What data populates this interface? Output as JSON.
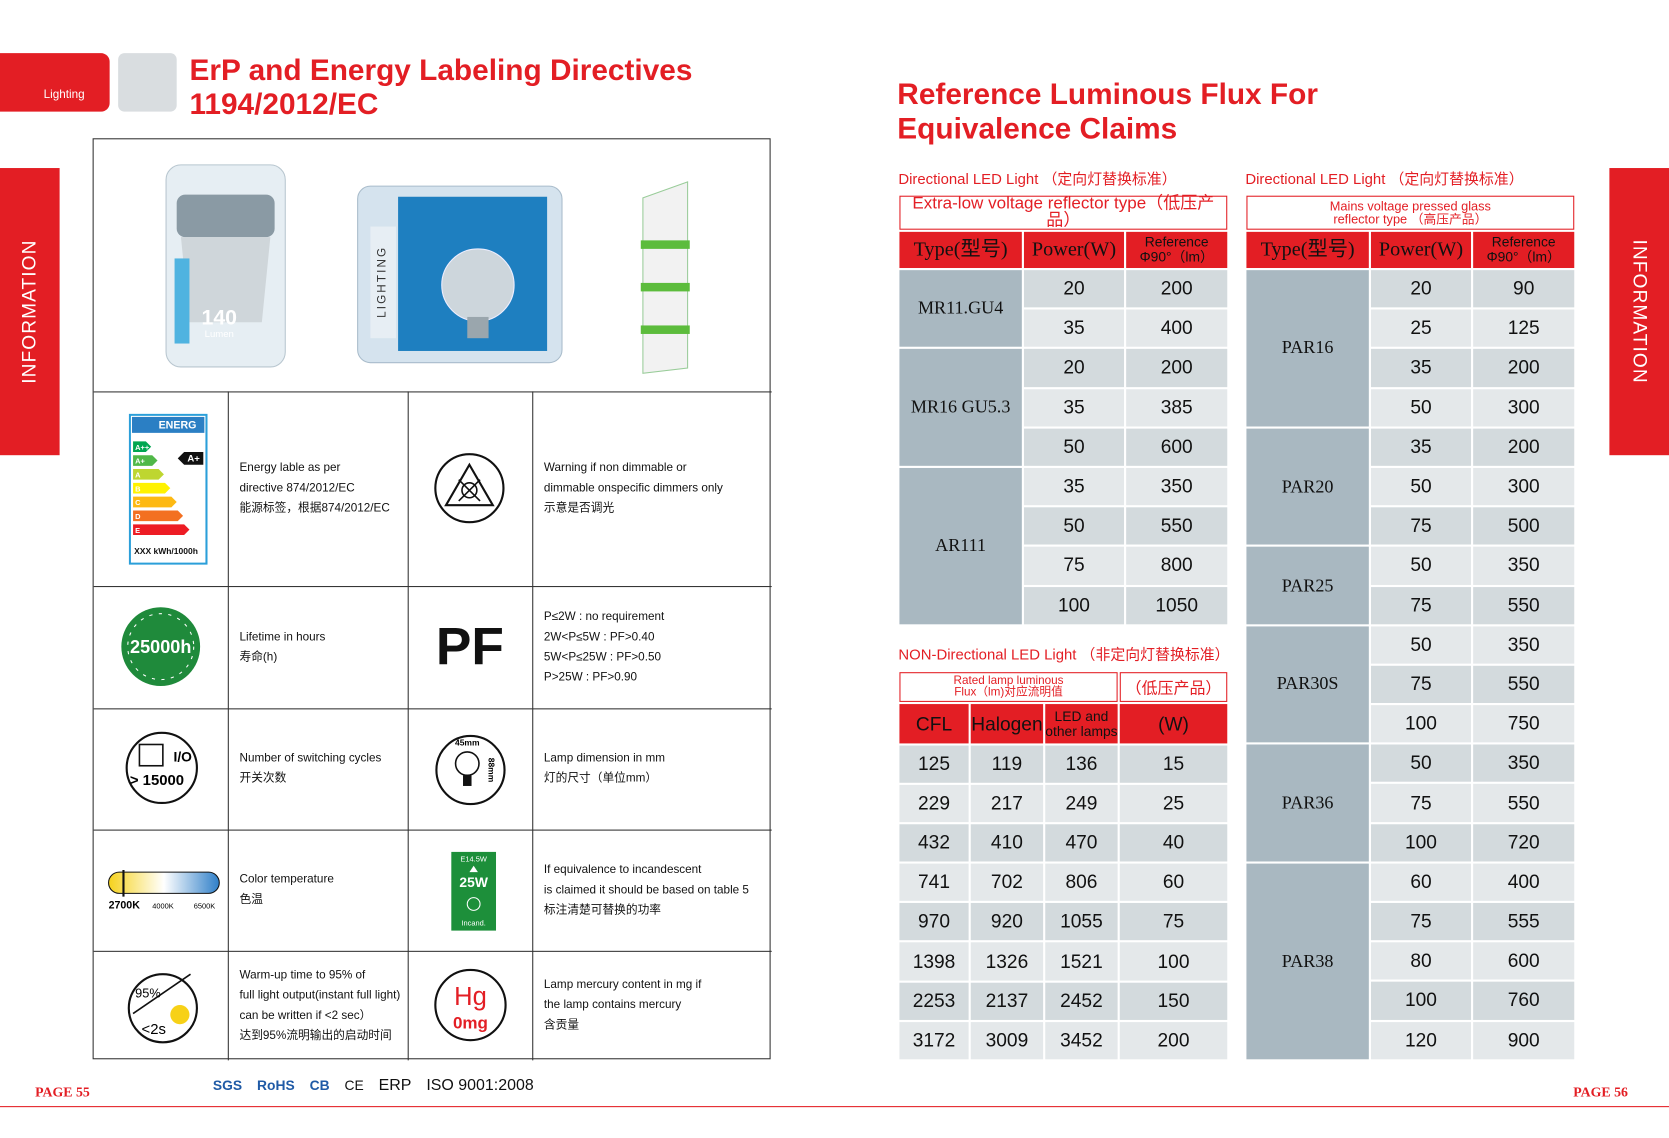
{
  "header": {
    "tab": "Lighting",
    "title": [
      "ErP and Energy Labeling Directives",
      "1194/2012/EC"
    ],
    "side": "INFORMATION"
  },
  "products": {
    "lumen": "140",
    "lumen_unit": "Lumen",
    "brand": "LIGHTING"
  },
  "features": [
    {
      "icon": {
        "header": "ENERG",
        "classes": [
          "A++",
          "A+",
          "A",
          "B",
          "C",
          "D",
          "E"
        ],
        "rating": "A+",
        "footer": "XXX kWh/1000h"
      },
      "text": [
        "Energy lable as per",
        "directive 874/2012/EC",
        "能源标签，根据874/2012/EC"
      ]
    },
    {
      "text": [
        "Warning if non dimmable or",
        "dimmable onspecific dimmers only",
        "示意是否调光"
      ]
    },
    {
      "icon": {
        "label": "25000h"
      },
      "text": [
        "Lifetime in hours",
        "寿命(h)"
      ]
    },
    {
      "icon": {
        "label": "PF"
      },
      "text": [
        "P≤2W : no requirement",
        "2W<P≤5W : PF>0.40",
        "5W<P≤25W : PF>0.50",
        "P>25W : PF>0.90"
      ]
    },
    {
      "icon": {
        "top": "I/O",
        "bottom": "> 15000"
      },
      "text": [
        "Number of switching cycles",
        "开关次数"
      ]
    },
    {
      "icon": {
        "width": "45mm",
        "height": "88mm"
      },
      "text": [
        "Lamp dimension in mm",
        "灯的尺寸（单位mm）"
      ]
    },
    {
      "icon": {
        "marks": [
          "2700K",
          "4000K",
          "6500K"
        ]
      },
      "text": [
        "Color temperature",
        "色温"
      ]
    },
    {
      "icon": {
        "top": "E14.5W",
        "value": "25W",
        "bottom": "Incand."
      },
      "text": [
        "If equivalence to incandescent",
        "is claimed it should be based on table 5",
        "标注清楚可替换的功率"
      ]
    },
    {
      "icon": {
        "top": "95%",
        "bottom": "<2s"
      },
      "text": [
        "Warm-up time to 95% of",
        "full light output(instant full light)",
        "can be written if <2 sec）",
        "达到95%流明输出的启动时间"
      ]
    },
    {
      "icon": {
        "top": "Hg",
        "bottom": "0mg"
      },
      "text": [
        "Lamp mercury content in mg if",
        "the lamp contains mercury",
        "含贡量"
      ]
    }
  ],
  "footer": {
    "left_page": "PAGE 55",
    "right_page": "PAGE 56",
    "certifications": [
      "SGS",
      "RoHS",
      "CB",
      "CE",
      "ERP",
      "ISO 9001:2008"
    ]
  },
  "right": {
    "title": [
      "Reference Luminous Flux For",
      "Equivalence Claims"
    ],
    "directional_low": {
      "label": "Directional LED Light （定向灯替换标准）",
      "caption": [
        "Extra-low voltage reflector type（低压产品）"
      ],
      "headers": [
        "Type(型号)",
        "Power(W)",
        [
          "Reference",
          "Φ90°（lm）"
        ]
      ],
      "groups": [
        {
          "type": "MR11.GU4",
          "rows": [
            [
              20,
              200
            ],
            [
              35,
              400
            ]
          ]
        },
        {
          "type": "MR16 GU5.3",
          "rows": [
            [
              20,
              200
            ],
            [
              35,
              385
            ],
            [
              50,
              600
            ]
          ]
        },
        {
          "type": "AR111",
          "rows": [
            [
              35,
              350
            ],
            [
              50,
              550
            ],
            [
              75,
              800
            ],
            [
              100,
              1050
            ]
          ]
        }
      ]
    },
    "directional_mains": {
      "label": "Directional LED Light （定向灯替换标准）",
      "caption": [
        "Mains voltage pressed glass",
        "reflector type （高压产品）"
      ],
      "headers": [
        "Type(型号)",
        "Power(W)",
        [
          "Reference",
          "Φ90°（lm）"
        ]
      ],
      "groups": [
        {
          "type": "PAR16",
          "rows": [
            [
              20,
              90
            ],
            [
              25,
              125
            ],
            [
              35,
              200
            ],
            [
              50,
              300
            ]
          ]
        },
        {
          "type": "PAR20",
          "rows": [
            [
              35,
              200
            ],
            [
              50,
              300
            ],
            [
              75,
              500
            ]
          ]
        },
        {
          "type": "PAR25",
          "rows": [
            [
              50,
              350
            ],
            [
              75,
              550
            ]
          ]
        },
        {
          "type": "PAR30S",
          "rows": [
            [
              50,
              350
            ],
            [
              75,
              550
            ],
            [
              100,
              750
            ]
          ]
        },
        {
          "type": "PAR36",
          "rows": [
            [
              50,
              350
            ],
            [
              75,
              550
            ],
            [
              100,
              720
            ]
          ]
        },
        {
          "type": "PAR38",
          "rows": [
            [
              60,
              400
            ],
            [
              75,
              555
            ],
            [
              80,
              600
            ],
            [
              100,
              760
            ],
            [
              120,
              900
            ]
          ]
        }
      ]
    },
    "non_directional": {
      "label": "NON-Directional LED Light （非定向灯替换标准）",
      "caption": [
        "Rated lamp luminous",
        "Flux（lm)对应流明值"
      ],
      "caption_right": "（低压产品）",
      "headers": [
        "CFL",
        "Halogen",
        [
          "LED and",
          "other lamps"
        ],
        "(W)"
      ],
      "rows": [
        [
          125,
          119,
          136,
          15
        ],
        [
          229,
          217,
          249,
          25
        ],
        [
          432,
          410,
          470,
          40
        ],
        [
          741,
          702,
          806,
          60
        ],
        [
          970,
          920,
          1055,
          75
        ],
        [
          1398,
          1326,
          1521,
          100
        ],
        [
          2253,
          2137,
          2452,
          150
        ],
        [
          3172,
          3009,
          3452,
          200
        ]
      ]
    }
  }
}
